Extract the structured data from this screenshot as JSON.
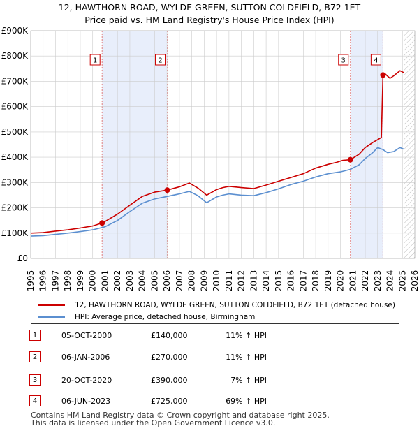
{
  "title_line1": "12, HAWTHORN ROAD, WYLDE GREEN, SUTTON COLDFIELD, B72 1ET",
  "title_line2": "Price paid vs. HM Land Registry's House Price Index (HPI)",
  "colors": {
    "property": "#cc0000",
    "hpi": "#5b8fd0",
    "shade": "#e8eefb",
    "grid": "#cccccc"
  },
  "chart_data": {
    "type": "line",
    "xlim": [
      1995,
      2026
    ],
    "ylim": [
      0,
      900000
    ],
    "y_ticks": [
      0,
      100000,
      200000,
      300000,
      400000,
      500000,
      600000,
      700000,
      800000,
      900000
    ],
    "y_tick_labels": [
      "£0",
      "£100K",
      "£200K",
      "£300K",
      "£400K",
      "£500K",
      "£600K",
      "£700K",
      "£800K",
      "£900K"
    ],
    "x_ticks": [
      1995,
      1996,
      1997,
      1998,
      1999,
      2000,
      2001,
      2002,
      2003,
      2004,
      2005,
      2006,
      2007,
      2008,
      2009,
      2010,
      2011,
      2012,
      2013,
      2014,
      2015,
      2016,
      2017,
      2018,
      2019,
      2020,
      2021,
      2022,
      2023,
      2024,
      2025,
      2026
    ],
    "shaded_periods": [
      [
        2000.76,
        2006.02
      ],
      [
        2020.8,
        2023.43
      ]
    ],
    "hatched_from": 2025.1,
    "series": [
      {
        "name": "12, HAWTHORN ROAD, WYLDE GREEN, SUTTON COLDFIELD, B72 1ET (detached house)",
        "x": [
          1995,
          1996,
          1997,
          1998,
          1999,
          2000,
          2000.76,
          2001,
          2002,
          2003,
          2004,
          2005,
          2006.02,
          2007,
          2007.8,
          2008.5,
          2009.2,
          2010,
          2010.5,
          2011,
          2012,
          2013,
          2014,
          2015,
          2016,
          2017,
          2018,
          2019,
          2019.7,
          2020.2,
          2020.8,
          2021.5,
          2022,
          2022.6,
          2023.3,
          2023.43,
          2023.6,
          2024,
          2024.3,
          2024.8,
          2025.1
        ],
        "values": [
          100000,
          102000,
          108000,
          113000,
          120000,
          128000,
          140000,
          146000,
          175000,
          210000,
          245000,
          262000,
          270000,
          283000,
          298000,
          278000,
          250000,
          272000,
          280000,
          285000,
          280000,
          276000,
          290000,
          305000,
          320000,
          335000,
          357000,
          372000,
          380000,
          388000,
          390000,
          412000,
          438000,
          458000,
          478000,
          725000,
          730000,
          712000,
          722000,
          742000,
          735000
        ]
      },
      {
        "name": "HPI: Average price, detached house, Birmingham",
        "x": [
          1995,
          1996,
          1997,
          1998,
          1999,
          2000,
          2001,
          2002,
          2003,
          2004,
          2005,
          2006,
          2007,
          2007.8,
          2008.5,
          2009.2,
          2010,
          2010.5,
          2011,
          2012,
          2013,
          2014,
          2015,
          2016,
          2017,
          2018,
          2019,
          2020,
          2020.8,
          2021.5,
          2022,
          2022.6,
          2023,
          2023.43,
          2023.8,
          2024.3,
          2024.8,
          2025.1
        ],
        "values": [
          88000,
          90000,
          95000,
          100000,
          106000,
          113000,
          125000,
          150000,
          185000,
          218000,
          235000,
          245000,
          255000,
          265000,
          248000,
          220000,
          243000,
          250000,
          255000,
          250000,
          248000,
          260000,
          275000,
          292000,
          305000,
          322000,
          335000,
          342000,
          352000,
          370000,
          395000,
          418000,
          438000,
          430000,
          418000,
          422000,
          438000,
          432000
        ]
      }
    ],
    "markers": [
      {
        "label": "1",
        "x": 2000.76,
        "y": 140000
      },
      {
        "label": "2",
        "x": 2006.02,
        "y": 270000
      },
      {
        "label": "3",
        "x": 2020.8,
        "y": 390000
      },
      {
        "label": "4",
        "x": 2023.43,
        "y": 725000
      }
    ]
  },
  "legend": {
    "property": "12, HAWTHORN ROAD, WYLDE GREEN, SUTTON COLDFIELD, B72 1ET (detached house)",
    "hpi": "HPI: Average price, detached house, Birmingham"
  },
  "sales": [
    {
      "num": "1",
      "date": "05-OCT-2000",
      "price": "£140,000",
      "hpi": "11% ↑ HPI"
    },
    {
      "num": "2",
      "date": "06-JAN-2006",
      "price": "£270,000",
      "hpi": "11% ↑ HPI"
    },
    {
      "num": "3",
      "date": "20-OCT-2020",
      "price": "£390,000",
      "hpi": "7% ↑ HPI"
    },
    {
      "num": "4",
      "date": "06-JUN-2023",
      "price": "£725,000",
      "hpi": "69% ↑ HPI"
    }
  ],
  "footer_line1": "Contains HM Land Registry data © Crown copyright and database right 2025.",
  "footer_line2": "This data is licensed under the Open Government Licence v3.0."
}
